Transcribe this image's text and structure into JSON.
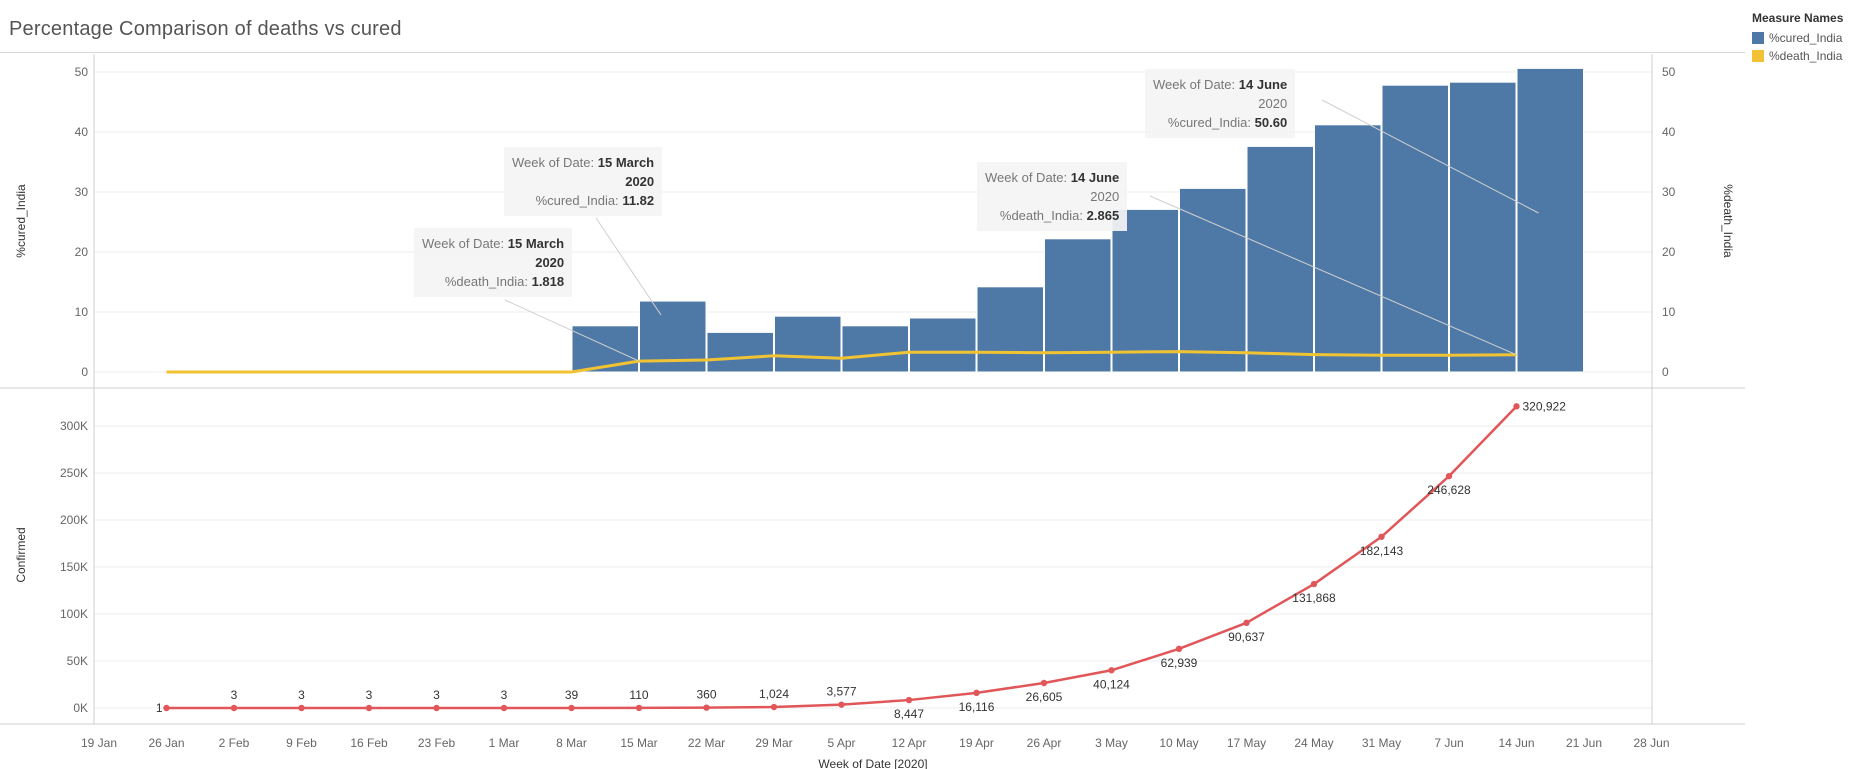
{
  "title": "Percentage Comparison of deaths vs cured",
  "legend": {
    "title": "Measure Names",
    "items": [
      {
        "label": "%cured_India",
        "color": "#4e79a7"
      },
      {
        "label": "%death_India",
        "color": "#f1c232"
      }
    ]
  },
  "tooltips": [
    {
      "prefix": "Week of Date:",
      "date": "15 March",
      "year": "2020",
      "measure": "%death_India:",
      "value": "1.818"
    },
    {
      "prefix": "Week of Date:",
      "date": "15 March",
      "year": "2020",
      "measure": "%cured_India:",
      "value": "11.82"
    },
    {
      "prefix": "Week of Date:",
      "date": "14 June",
      "year": "2020",
      "measure": "%death_India:",
      "value": "2.865"
    },
    {
      "prefix": "Week of Date:",
      "date": "14 June",
      "year": "2020",
      "measure": "%cured_India:",
      "value": "50.60"
    }
  ],
  "chart_data": [
    {
      "type": "bar",
      "ylabel": "%cured_India",
      "y2label": "%death_India",
      "ylim": [
        0,
        52
      ],
      "yticks": [
        0,
        10,
        20,
        30,
        40,
        50
      ],
      "y2ticks": [
        0,
        10,
        20,
        30,
        40,
        50
      ],
      "grid": true,
      "legend": "right",
      "x_ticks": [
        "19 Jan",
        "26 Jan",
        "2 Feb",
        "9 Feb",
        "16 Feb",
        "23 Feb",
        "1 Mar",
        "8 Mar",
        "15 Mar",
        "22 Mar",
        "29 Mar",
        "5 Apr",
        "12 Apr",
        "19 Apr",
        "26 Apr",
        "3 May",
        "10 May",
        "17 May",
        "24 May",
        "31 May",
        "7 Jun",
        "14 Jun",
        "21 Jun",
        "28 Jun"
      ],
      "series": [
        {
          "name": "%cured_India",
          "type": "bar",
          "color": "#4e79a7",
          "points": [
            {
              "x": "8 Mar",
              "y": 7.7
            },
            {
              "x": "15 Mar",
              "y": 11.82
            },
            {
              "x": "22 Mar",
              "y": 6.6
            },
            {
              "x": "29 Mar",
              "y": 9.3
            },
            {
              "x": "5 Apr",
              "y": 7.7
            },
            {
              "x": "12 Apr",
              "y": 9.0
            },
            {
              "x": "19 Apr",
              "y": 14.2
            },
            {
              "x": "26 Apr",
              "y": 22.2
            },
            {
              "x": "3 May",
              "y": 27.1
            },
            {
              "x": "10 May",
              "y": 30.6
            },
            {
              "x": "17 May",
              "y": 37.6
            },
            {
              "x": "24 May",
              "y": 41.2
            },
            {
              "x": "31 May",
              "y": 47.8
            },
            {
              "x": "7 Jun",
              "y": 48.3
            },
            {
              "x": "14 Jun",
              "y": 50.6
            }
          ]
        },
        {
          "name": "%death_India",
          "type": "line",
          "color": "#f1c232",
          "points": [
            {
              "x": "26 Jan",
              "y": 0
            },
            {
              "x": "2 Feb",
              "y": 0
            },
            {
              "x": "9 Feb",
              "y": 0
            },
            {
              "x": "16 Feb",
              "y": 0
            },
            {
              "x": "23 Feb",
              "y": 0
            },
            {
              "x": "1 Mar",
              "y": 0
            },
            {
              "x": "8 Mar",
              "y": 0
            },
            {
              "x": "15 Mar",
              "y": 1.818
            },
            {
              "x": "22 Mar",
              "y": 2.0
            },
            {
              "x": "29 Mar",
              "y": 2.7
            },
            {
              "x": "5 Apr",
              "y": 2.3
            },
            {
              "x": "12 Apr",
              "y": 3.3
            },
            {
              "x": "19 Apr",
              "y": 3.3
            },
            {
              "x": "26 Apr",
              "y": 3.2
            },
            {
              "x": "3 May",
              "y": 3.3
            },
            {
              "x": "10 May",
              "y": 3.4
            },
            {
              "x": "17 May",
              "y": 3.2
            },
            {
              "x": "24 May",
              "y": 2.9
            },
            {
              "x": "31 May",
              "y": 2.8
            },
            {
              "x": "7 Jun",
              "y": 2.8
            },
            {
              "x": "14 Jun",
              "y": 2.865
            }
          ]
        }
      ]
    },
    {
      "type": "line",
      "ylabel": "Confirmed",
      "xlabel": "Week of Date [2020]",
      "ylim": [
        0,
        320922
      ],
      "yticks": [
        0,
        50000,
        100000,
        150000,
        200000,
        250000,
        300000
      ],
      "ytick_labels": [
        "0K",
        "50K",
        "100K",
        "150K",
        "200K",
        "250K",
        "300K"
      ],
      "grid": true,
      "series": [
        {
          "name": "Confirmed",
          "color": "#e15759",
          "points": [
            {
              "x": "26 Jan",
              "y": 1,
              "label": "1"
            },
            {
              "x": "2 Feb",
              "y": 3,
              "label": "3"
            },
            {
              "x": "9 Feb",
              "y": 3,
              "label": "3"
            },
            {
              "x": "16 Feb",
              "y": 3,
              "label": "3"
            },
            {
              "x": "23 Feb",
              "y": 3,
              "label": "3"
            },
            {
              "x": "1 Mar",
              "y": 3,
              "label": "3"
            },
            {
              "x": "8 Mar",
              "y": 39,
              "label": "39"
            },
            {
              "x": "15 Mar",
              "y": 110,
              "label": "110"
            },
            {
              "x": "22 Mar",
              "y": 360,
              "label": "360"
            },
            {
              "x": "29 Mar",
              "y": 1024,
              "label": "1,024"
            },
            {
              "x": "5 Apr",
              "y": 3577,
              "label": "3,577"
            },
            {
              "x": "12 Apr",
              "y": 8447,
              "label": "8,447"
            },
            {
              "x": "19 Apr",
              "y": 16116,
              "label": "16,116"
            },
            {
              "x": "26 Apr",
              "y": 26605,
              "label": "26,605"
            },
            {
              "x": "3 May",
              "y": 40124,
              "label": "40,124"
            },
            {
              "x": "10 May",
              "y": 62939,
              "label": "62,939"
            },
            {
              "x": "17 May",
              "y": 90637,
              "label": "90,637"
            },
            {
              "x": "24 May",
              "y": 131868,
              "label": "131,868"
            },
            {
              "x": "31 May",
              "y": 182143,
              "label": "182,143"
            },
            {
              "x": "7 Jun",
              "y": 246628,
              "label": "246,628"
            },
            {
              "x": "14 Jun",
              "y": 320922,
              "label": "320,922"
            }
          ]
        }
      ]
    }
  ]
}
